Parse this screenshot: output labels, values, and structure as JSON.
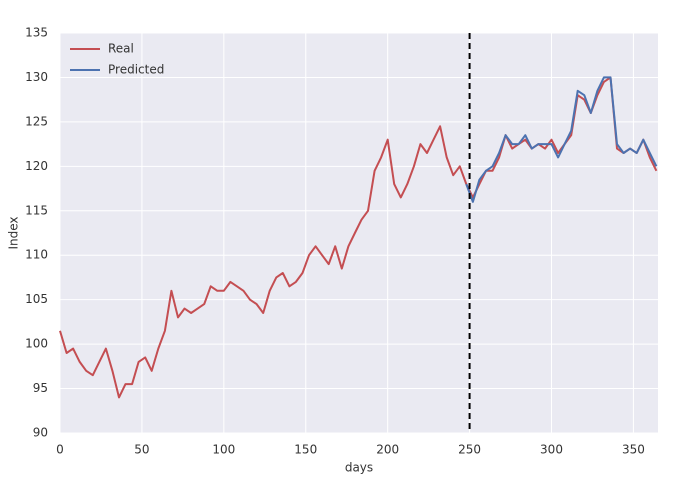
{
  "chart_data": {
    "type": "line",
    "x": [
      0,
      4,
      8,
      12,
      16,
      20,
      24,
      28,
      32,
      36,
      40,
      44,
      48,
      52,
      56,
      60,
      64,
      68,
      72,
      76,
      80,
      84,
      88,
      92,
      96,
      100,
      104,
      108,
      112,
      116,
      120,
      124,
      128,
      132,
      136,
      140,
      144,
      148,
      152,
      156,
      160,
      164,
      168,
      172,
      176,
      180,
      184,
      188,
      192,
      196,
      200,
      204,
      208,
      212,
      216,
      220,
      224,
      228,
      232,
      236,
      240,
      244,
      248,
      252,
      256,
      260,
      264,
      268,
      272,
      276,
      280,
      284,
      288,
      292,
      296,
      300,
      304,
      308,
      312,
      316,
      320,
      324,
      328,
      332,
      336,
      340,
      344,
      348,
      352,
      356,
      360,
      364
    ],
    "series": [
      {
        "name": "Real",
        "color": "#c44e52",
        "values": [
          101.5,
          99,
          99.5,
          98,
          97,
          96.5,
          98,
          99.5,
          97,
          94,
          95.5,
          95.5,
          98,
          98.5,
          97,
          99.5,
          101.5,
          106,
          103,
          104,
          103.5,
          104,
          104.5,
          106.5,
          106,
          106,
          107,
          106.5,
          106,
          105,
          104.5,
          103.5,
          106,
          107.5,
          108,
          106.5,
          107,
          108,
          110,
          111,
          110,
          109,
          111,
          108.5,
          111,
          112.5,
          114,
          115,
          119.5,
          121,
          123,
          118,
          116.5,
          118,
          120,
          122.5,
          121.5,
          123,
          124.5,
          121,
          119,
          120,
          118,
          116.5,
          118,
          119.5,
          119.5,
          121,
          123.5,
          122,
          122.5,
          123,
          122,
          122.5,
          122,
          123,
          121.5,
          122.5,
          123.5,
          128,
          127.5,
          126,
          128,
          129.5,
          130,
          122,
          121.5,
          122,
          121.5,
          123,
          121,
          119.5
        ]
      },
      {
        "name": "Predicted",
        "color": "#4c72b0",
        "values": [
          null,
          null,
          null,
          null,
          null,
          null,
          null,
          null,
          null,
          null,
          null,
          null,
          null,
          null,
          null,
          null,
          null,
          null,
          null,
          null,
          null,
          null,
          null,
          null,
          null,
          null,
          null,
          null,
          null,
          null,
          null,
          null,
          null,
          null,
          null,
          null,
          null,
          null,
          null,
          null,
          null,
          null,
          null,
          null,
          null,
          null,
          null,
          null,
          null,
          null,
          null,
          null,
          null,
          null,
          null,
          null,
          null,
          null,
          null,
          null,
          null,
          null,
          118,
          116,
          118.5,
          119.5,
          120,
          121.5,
          123.5,
          122.5,
          122.5,
          123.5,
          122,
          122.5,
          122.5,
          122.5,
          121,
          122.5,
          124,
          128.5,
          128,
          126,
          128.5,
          130,
          130,
          122.5,
          121.5,
          122,
          121.5,
          123,
          121.5,
          120
        ]
      }
    ],
    "xlabel": "days",
    "ylabel": "Index",
    "xlim": [
      0,
      365
    ],
    "ylim": [
      90,
      135
    ],
    "xticks": [
      0,
      50,
      100,
      150,
      200,
      250,
      300,
      350
    ],
    "yticks": [
      90,
      95,
      100,
      105,
      110,
      115,
      120,
      125,
      130,
      135
    ],
    "vline": 250,
    "grid": true,
    "legend": "upper left"
  }
}
